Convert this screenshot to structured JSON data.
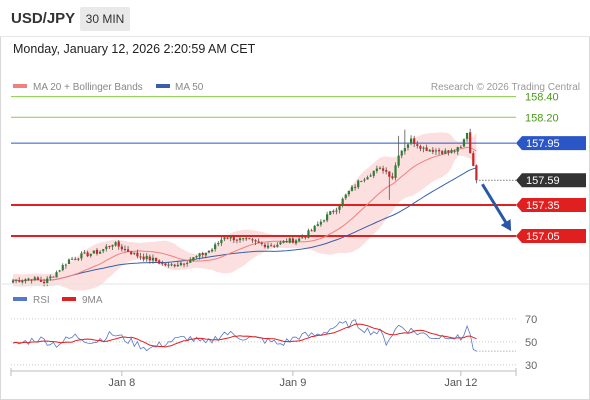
{
  "header": {
    "pair": "USD/JPY",
    "timeframe": "30 MIN",
    "datetime": "Monday, January 12, 2026 2:20:59 AM CET"
  },
  "legend": {
    "ma20": "MA 20 + Bollinger Bands",
    "ma50": "MA 50",
    "credit": "Research © 2026 Trading Central",
    "rsi": "RSI",
    "ma9": "9MA"
  },
  "colors": {
    "ma20": "#f08080",
    "ma50": "#3a5ea8",
    "bollinger_fill": "#fcd9d9",
    "support": "#e02020",
    "pivot": "#2a56c6",
    "resistance": "#8cc84b",
    "current": "#333333",
    "rsi": "#5577cc",
    "ma9_rsi": "#e02020",
    "arrow": "#2a56a8"
  },
  "chart_data": [
    {
      "type": "candlestick",
      "title": "USD/JPY 30 MIN",
      "x_ticks": [
        "Jan 8",
        "Jan 9",
        "Jan 12"
      ],
      "ylim": [
        156.4,
        158.5
      ],
      "levels": [
        {
          "label": "158.40",
          "value": 158.4,
          "kind": "resistance"
        },
        {
          "label": "158.20",
          "value": 158.2,
          "kind": "resistance"
        },
        {
          "label": "157.95",
          "value": 157.95,
          "kind": "pivot"
        },
        {
          "label": "157.59",
          "value": 157.59,
          "kind": "current"
        },
        {
          "label": "157.35",
          "value": 157.35,
          "kind": "support"
        },
        {
          "label": "157.05",
          "value": 157.05,
          "kind": "support"
        }
      ],
      "anchors": [
        [
          0,
          156.62
        ],
        [
          6,
          156.64
        ],
        [
          10,
          156.6
        ],
        [
          14,
          156.7
        ],
        [
          18,
          156.82
        ],
        [
          22,
          156.86
        ],
        [
          28,
          156.9
        ],
        [
          32,
          156.98
        ],
        [
          36,
          156.92
        ],
        [
          40,
          156.86
        ],
        [
          45,
          156.82
        ],
        [
          50,
          156.76
        ],
        [
          55,
          156.8
        ],
        [
          60,
          156.86
        ],
        [
          64,
          156.92
        ],
        [
          68,
          157.05
        ],
        [
          72,
          157.02
        ],
        [
          76,
          157.0
        ],
        [
          80,
          156.97
        ],
        [
          84,
          156.96
        ],
        [
          88,
          157.0
        ],
        [
          92,
          157.02
        ],
        [
          96,
          157.1
        ],
        [
          100,
          157.22
        ],
        [
          104,
          157.32
        ],
        [
          108,
          157.48
        ],
        [
          112,
          157.6
        ],
        [
          116,
          157.68
        ],
        [
          119,
          157.7
        ],
        [
          122,
          157.62
        ],
        [
          124,
          157.85
        ],
        [
          128,
          157.98
        ],
        [
          132,
          157.9
        ],
        [
          136,
          157.88
        ],
        [
          140,
          157.86
        ],
        [
          144,
          157.9
        ],
        [
          146,
          158.06
        ],
        [
          147,
          157.86
        ],
        [
          148,
          157.75
        ],
        [
          149,
          157.59
        ]
      ],
      "spikes": [
        {
          "bar": 121,
          "low": 157.4
        },
        {
          "bar": 124,
          "high": 158.02
        },
        {
          "bar": 126,
          "high": 158.08
        }
      ],
      "forecast": {
        "from": 157.59,
        "to": 157.05
      }
    },
    {
      "type": "line",
      "title": "RSI",
      "series": [
        {
          "name": "RSI"
        },
        {
          "name": "9MA"
        }
      ],
      "ylim": [
        20,
        80
      ],
      "y_ticks": [
        70,
        50,
        30
      ],
      "anchors": [
        [
          0,
          47
        ],
        [
          8,
          53
        ],
        [
          14,
          48
        ],
        [
          20,
          55
        ],
        [
          26,
          50
        ],
        [
          32,
          57
        ],
        [
          38,
          50
        ],
        [
          44,
          44
        ],
        [
          50,
          50
        ],
        [
          56,
          54
        ],
        [
          62,
          48
        ],
        [
          68,
          58
        ],
        [
          74,
          54
        ],
        [
          80,
          52
        ],
        [
          86,
          48
        ],
        [
          92,
          55
        ],
        [
          98,
          56
        ],
        [
          104,
          64
        ],
        [
          110,
          66
        ],
        [
          114,
          60
        ],
        [
          118,
          58
        ],
        [
          120,
          50
        ],
        [
          124,
          64
        ],
        [
          130,
          58
        ],
        [
          136,
          54
        ],
        [
          140,
          56
        ],
        [
          144,
          52
        ],
        [
          146,
          64
        ],
        [
          147,
          55
        ],
        [
          148,
          45
        ],
        [
          149,
          42
        ]
      ]
    }
  ]
}
